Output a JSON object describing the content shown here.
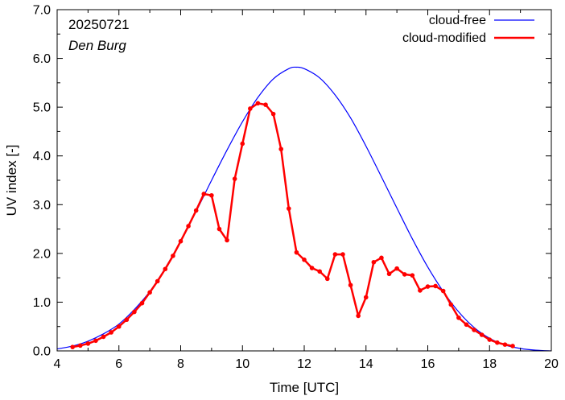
{
  "chart_data": {
    "type": "line",
    "title": "",
    "xlabel": "Time  [UTC]",
    "ylabel": "UV index  [-]",
    "xlim": [
      4,
      20
    ],
    "ylim": [
      0,
      7
    ],
    "x_ticks": [
      4,
      6,
      8,
      10,
      12,
      14,
      16,
      18,
      20
    ],
    "x_tick_labels": [
      "4",
      "6",
      "8",
      "10",
      "12",
      "14",
      "16",
      "18",
      "20"
    ],
    "y_ticks": [
      0,
      1,
      2,
      3,
      4,
      5,
      6,
      7
    ],
    "y_tick_labels": [
      "0.0",
      "1.0",
      "2.0",
      "3.0",
      "4.0",
      "5.0",
      "6.0",
      "7.0"
    ],
    "grid": false,
    "legend_position": "top-right",
    "annotations": [
      "20250721",
      "Den Burg"
    ],
    "colors": {
      "cloud_free": "#0000ff",
      "cloud_modified": "#ff0000"
    },
    "series": [
      {
        "name": "cloud-free",
        "style": "smooth-line",
        "peak_x": 11.75,
        "peak_y": 5.82,
        "x": [
          4.0,
          4.5,
          5.0,
          5.5,
          6.0,
          6.5,
          7.0,
          7.5,
          8.0,
          8.5,
          9.0,
          9.5,
          10.0,
          10.5,
          11.0,
          11.5,
          11.75,
          12.0,
          12.5,
          13.0,
          13.5,
          14.0,
          14.5,
          15.0,
          15.5,
          16.0,
          16.5,
          17.0,
          17.5,
          18.0,
          18.5,
          19.0,
          19.5,
          20.0
        ],
        "values": [
          0.04,
          0.1,
          0.2,
          0.35,
          0.55,
          0.85,
          1.22,
          1.7,
          2.25,
          2.86,
          3.5,
          4.12,
          4.7,
          5.2,
          5.58,
          5.79,
          5.82,
          5.79,
          5.6,
          5.25,
          4.78,
          4.2,
          3.57,
          2.93,
          2.3,
          1.72,
          1.22,
          0.8,
          0.48,
          0.26,
          0.12,
          0.05,
          0.015,
          0.0
        ]
      },
      {
        "name": "cloud-modified",
        "style": "line-points",
        "x": [
          4.5,
          4.75,
          5.0,
          5.25,
          5.5,
          5.75,
          6.0,
          6.25,
          6.5,
          6.75,
          7.0,
          7.25,
          7.5,
          7.75,
          8.0,
          8.25,
          8.5,
          8.75,
          9.0,
          9.25,
          9.5,
          9.75,
          10.0,
          10.25,
          10.5,
          10.75,
          11.0,
          11.25,
          11.5,
          11.75,
          12.0,
          12.25,
          12.5,
          12.75,
          13.0,
          13.25,
          13.5,
          13.75,
          14.0,
          14.25,
          14.5,
          14.75,
          15.0,
          15.25,
          15.5,
          15.75,
          16.0,
          16.25,
          16.5,
          16.75,
          17.0,
          17.25,
          17.5,
          17.75,
          18.0,
          18.25,
          18.5,
          18.75
        ],
        "values": [
          0.08,
          0.11,
          0.15,
          0.21,
          0.29,
          0.38,
          0.5,
          0.64,
          0.8,
          0.98,
          1.2,
          1.43,
          1.68,
          1.95,
          2.25,
          2.56,
          2.88,
          3.22,
          3.19,
          2.5,
          2.27,
          3.53,
          4.25,
          4.97,
          5.08,
          5.05,
          4.86,
          4.14,
          2.92,
          2.02,
          1.87,
          1.7,
          1.63,
          1.48,
          1.98,
          1.98,
          1.35,
          0.72,
          1.1,
          1.82,
          1.91,
          1.58,
          1.69,
          1.57,
          1.55,
          1.24,
          1.32,
          1.33,
          1.23,
          0.95,
          0.68,
          0.54,
          0.43,
          0.33,
          0.23,
          0.17,
          0.13,
          0.1
        ]
      }
    ]
  }
}
